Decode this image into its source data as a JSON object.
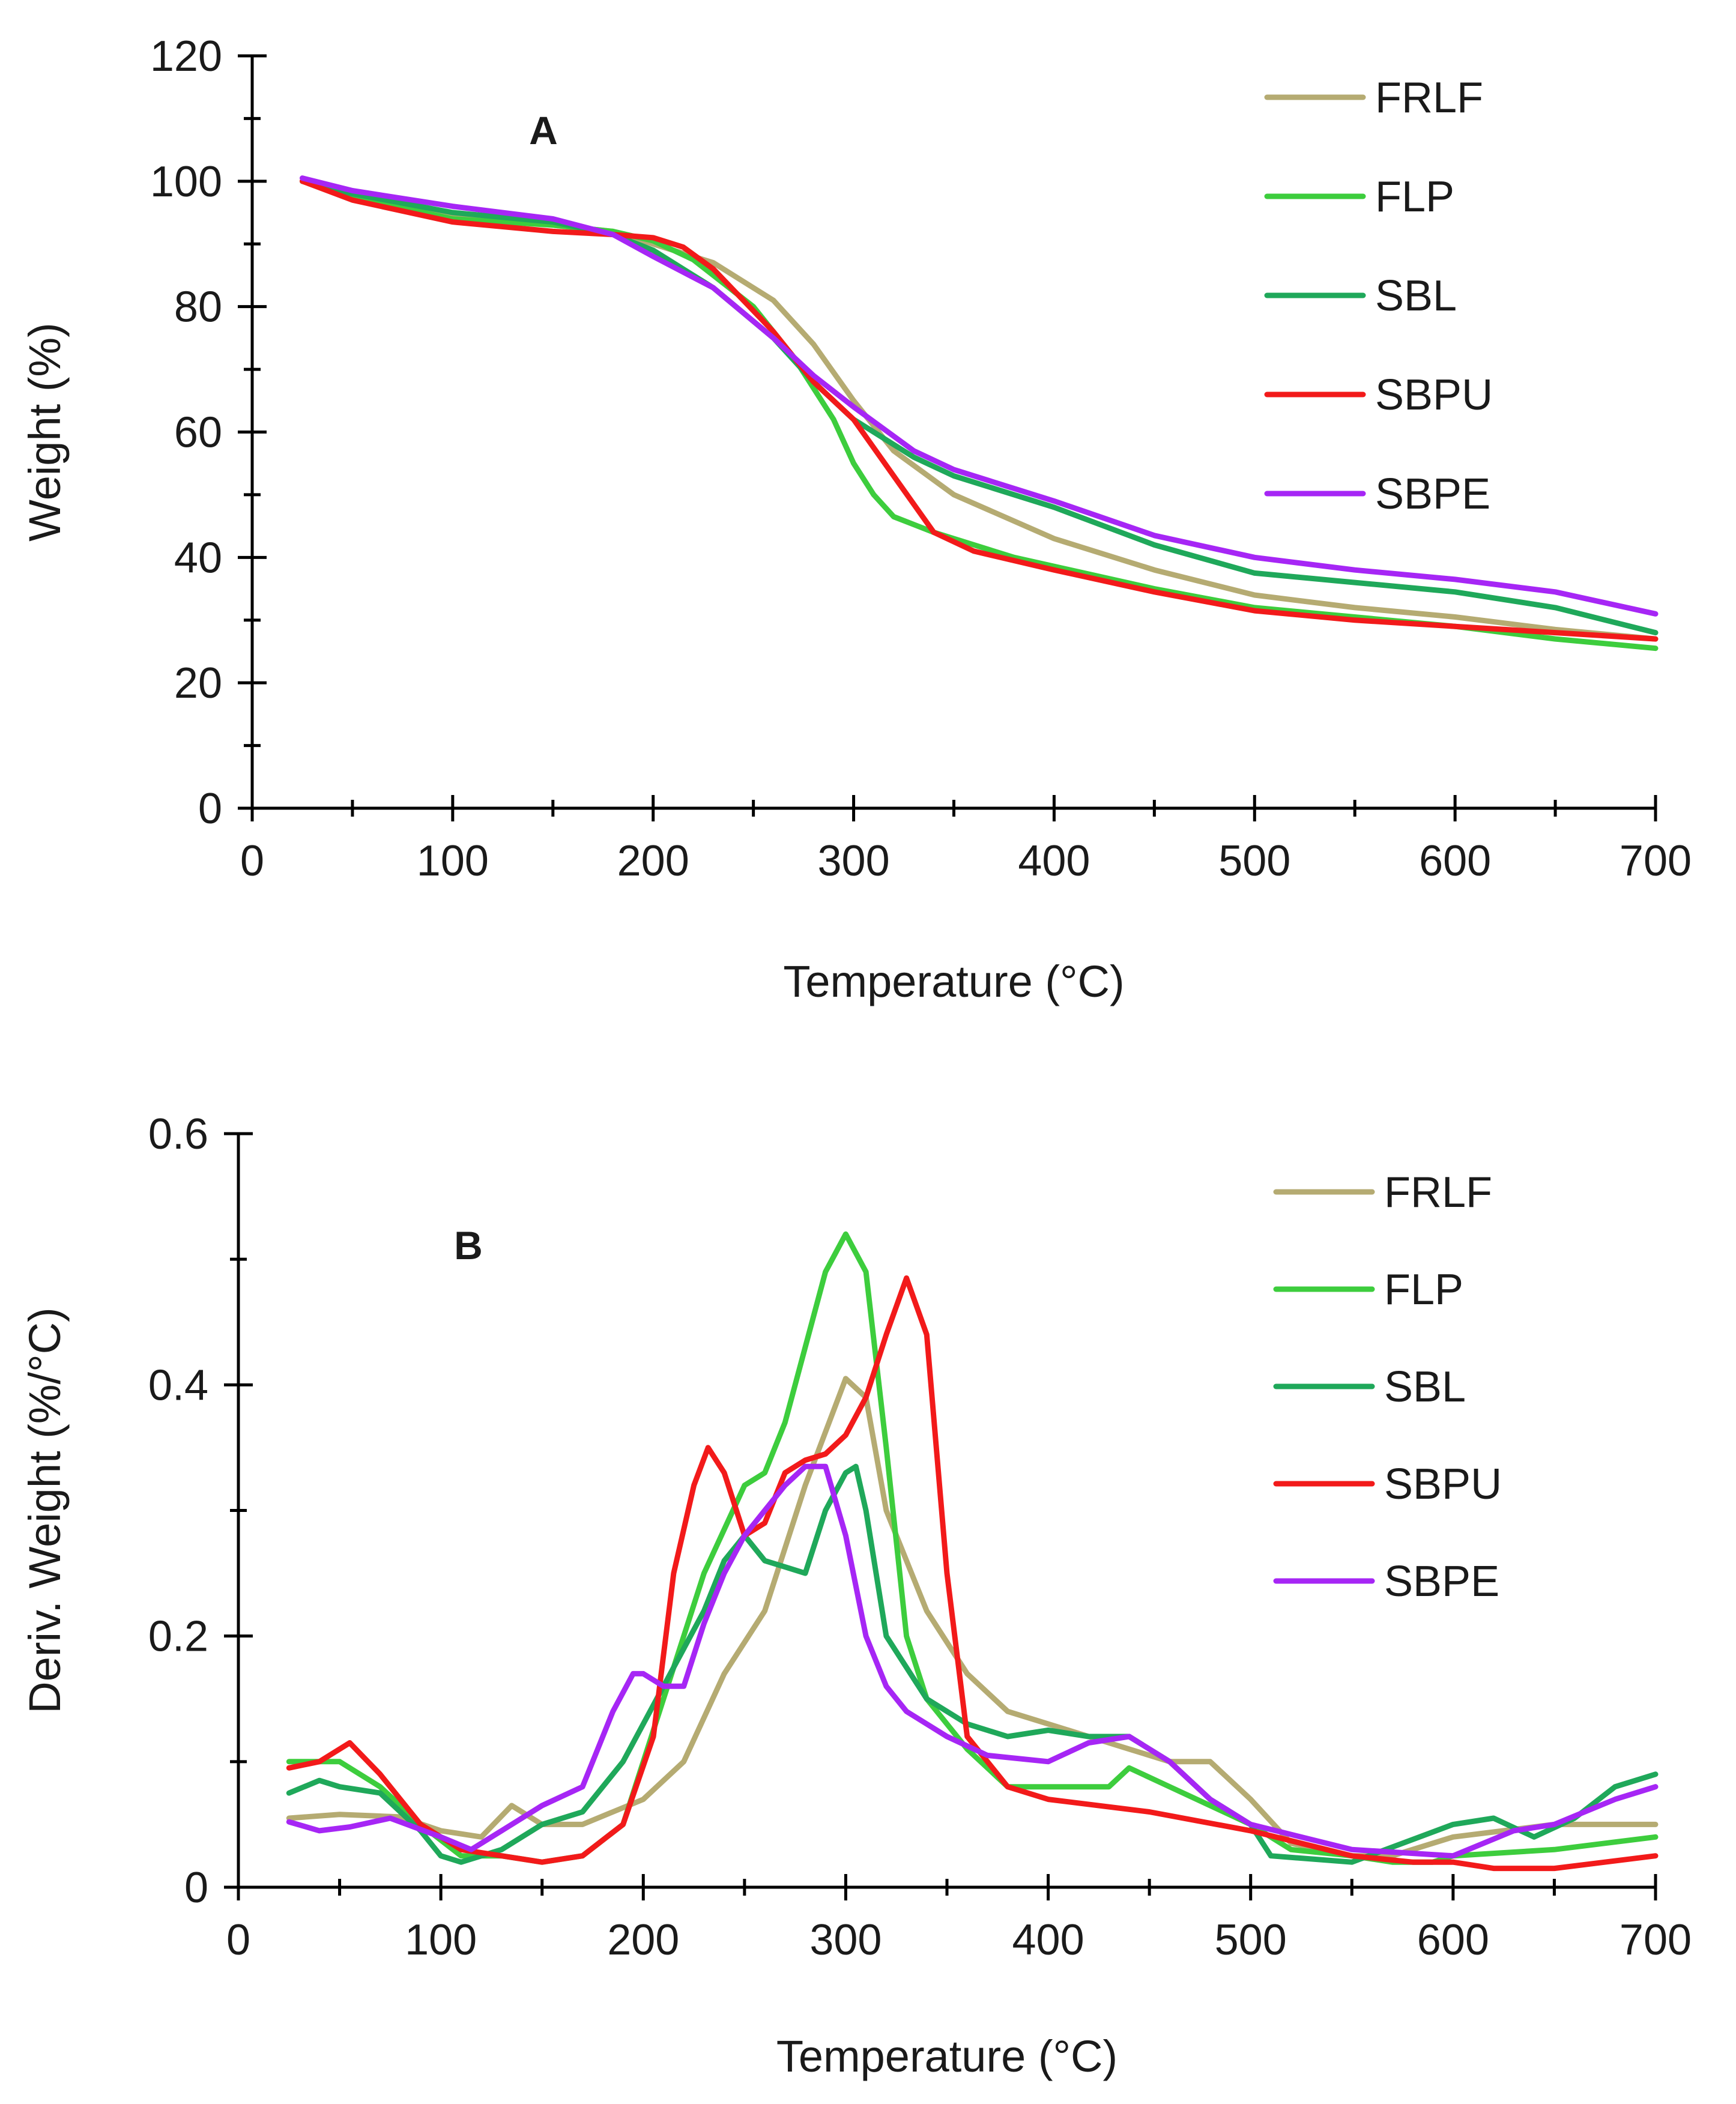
{
  "colors": {
    "FRLF": "#b5ab72",
    "FLP": "#3dcd3d",
    "SBL": "#1fa85a",
    "SBPU": "#f21a1a",
    "SBPE": "#a626f5"
  },
  "chart_data": [
    {
      "type": "line",
      "panel_label": "A",
      "title": "",
      "xlabel": "Temperature (°C)",
      "ylabel": "Weight (%)",
      "xlim": [
        0,
        700
      ],
      "ylim": [
        0,
        120
      ],
      "x_ticks": [
        0,
        100,
        200,
        300,
        400,
        500,
        600,
        700
      ],
      "y_ticks": [
        0,
        20,
        40,
        60,
        80,
        100,
        120
      ],
      "x_tick_labels": [
        "0",
        "100",
        "200",
        "300",
        "400",
        "500",
        "600",
        "700"
      ],
      "y_tick_labels": [
        "0",
        "20",
        "40",
        "60",
        "80",
        "100",
        "120"
      ],
      "x_minor_ticks": [
        50,
        150,
        250,
        350,
        450,
        550,
        650
      ],
      "y_minor_ticks": [
        10,
        30,
        50,
        70,
        90,
        110
      ],
      "legend_position": "top-right",
      "series": [
        {
          "name": "FRLF",
          "x": [
            25,
            50,
            100,
            150,
            180,
            200,
            230,
            260,
            280,
            300,
            320,
            350,
            400,
            450,
            500,
            550,
            600,
            650,
            700
          ],
          "y": [
            100,
            97.5,
            94.5,
            93,
            92,
            90,
            87,
            81,
            74,
            65,
            57,
            50,
            43,
            38,
            34,
            32,
            30.5,
            28.5,
            27
          ]
        },
        {
          "name": "FLP",
          "x": [
            25,
            50,
            100,
            150,
            180,
            200,
            220,
            250,
            270,
            290,
            300,
            310,
            320,
            340,
            380,
            450,
            500,
            600,
            650,
            700
          ],
          "y": [
            100,
            97.5,
            94,
            93,
            92,
            90.5,
            87.5,
            80,
            72,
            62,
            55,
            50,
            46.5,
            44,
            40,
            35,
            32,
            29,
            27,
            25.5
          ]
        },
        {
          "name": "SBL",
          "x": [
            25,
            50,
            100,
            150,
            180,
            200,
            230,
            260,
            280,
            300,
            330,
            350,
            400,
            450,
            500,
            550,
            600,
            650,
            700
          ],
          "y": [
            100,
            98,
            95,
            93.5,
            91.5,
            89,
            83,
            75,
            68,
            62,
            56,
            53,
            48,
            42,
            37.5,
            36,
            34.5,
            32,
            28
          ]
        },
        {
          "name": "SBPU",
          "x": [
            25,
            50,
            100,
            150,
            180,
            200,
            215,
            230,
            260,
            280,
            300,
            320,
            340,
            360,
            400,
            450,
            500,
            550,
            600,
            650,
            700
          ],
          "y": [
            100,
            97,
            93.5,
            92,
            91.5,
            91,
            89.5,
            86,
            76,
            68,
            62,
            53,
            44,
            41,
            38,
            34.5,
            31.5,
            30,
            29,
            28,
            27
          ]
        },
        {
          "name": "SBPE",
          "x": [
            25,
            50,
            100,
            150,
            180,
            200,
            230,
            260,
            280,
            300,
            330,
            350,
            400,
            450,
            500,
            550,
            600,
            650,
            700
          ],
          "y": [
            100.5,
            98.5,
            96,
            94,
            91.5,
            88,
            83,
            75,
            69,
            64,
            57,
            54,
            49,
            43.5,
            40,
            38,
            36.5,
            34.5,
            31
          ]
        }
      ]
    },
    {
      "type": "line",
      "panel_label": "B",
      "title": "",
      "xlabel": "Temperature (°C)",
      "ylabel": "Deriv. Weight (%/°C)",
      "xlim": [
        0,
        700
      ],
      "ylim": [
        0,
        0.6
      ],
      "x_ticks": [
        0,
        100,
        200,
        300,
        400,
        500,
        600,
        700
      ],
      "y_ticks": [
        0,
        0.2,
        0.4,
        0.6
      ],
      "x_tick_labels": [
        "0",
        "100",
        "200",
        "300",
        "400",
        "500",
        "600",
        "700"
      ],
      "y_tick_labels": [
        "0",
        "0.2",
        "0.4",
        "0.6"
      ],
      "x_minor_ticks": [
        50,
        150,
        250,
        350,
        450,
        550,
        650
      ],
      "y_minor_ticks": [
        0.1,
        0.3,
        0.5
      ],
      "legend_position": "top-right",
      "series": [
        {
          "name": "FRLF",
          "x": [
            25,
            50,
            80,
            100,
            120,
            135,
            150,
            170,
            200,
            220,
            240,
            260,
            280,
            300,
            310,
            320,
            340,
            360,
            380,
            400,
            420,
            440,
            460,
            480,
            500,
            520,
            550,
            570,
            600,
            650,
            700
          ],
          "y": [
            0.055,
            0.058,
            0.056,
            0.045,
            0.04,
            0.065,
            0.05,
            0.05,
            0.07,
            0.1,
            0.17,
            0.22,
            0.32,
            0.405,
            0.39,
            0.3,
            0.22,
            0.17,
            0.14,
            0.13,
            0.12,
            0.11,
            0.1,
            0.1,
            0.07,
            0.035,
            0.025,
            0.025,
            0.04,
            0.05,
            0.05
          ]
        },
        {
          "name": "FLP",
          "x": [
            25,
            50,
            70,
            90,
            110,
            130,
            150,
            170,
            190,
            210,
            230,
            250,
            260,
            270,
            280,
            290,
            300,
            310,
            320,
            330,
            340,
            360,
            380,
            400,
            430,
            440,
            460,
            480,
            500,
            520,
            550,
            570,
            590,
            600,
            650,
            700
          ],
          "y": [
            0.1,
            0.1,
            0.08,
            0.05,
            0.025,
            0.025,
            0.02,
            0.025,
            0.05,
            0.15,
            0.25,
            0.32,
            0.33,
            0.37,
            0.43,
            0.49,
            0.52,
            0.49,
            0.35,
            0.2,
            0.15,
            0.11,
            0.08,
            0.08,
            0.08,
            0.095,
            0.08,
            0.065,
            0.05,
            0.03,
            0.025,
            0.02,
            0.02,
            0.025,
            0.03,
            0.04
          ]
        },
        {
          "name": "SBL",
          "x": [
            25,
            40,
            50,
            70,
            90,
            100,
            110,
            130,
            150,
            170,
            190,
            210,
            230,
            240,
            250,
            260,
            270,
            280,
            290,
            300,
            305,
            310,
            320,
            340,
            360,
            380,
            400,
            420,
            440,
            460,
            480,
            500,
            510,
            550,
            600,
            620,
            640,
            660,
            680,
            700
          ],
          "y": [
            0.075,
            0.085,
            0.08,
            0.075,
            0.045,
            0.025,
            0.02,
            0.03,
            0.05,
            0.06,
            0.1,
            0.16,
            0.22,
            0.26,
            0.28,
            0.26,
            0.255,
            0.25,
            0.3,
            0.33,
            0.335,
            0.3,
            0.2,
            0.15,
            0.13,
            0.12,
            0.125,
            0.12,
            0.12,
            0.1,
            0.07,
            0.05,
            0.025,
            0.02,
            0.05,
            0.055,
            0.04,
            0.055,
            0.08,
            0.09
          ]
        },
        {
          "name": "SBPU",
          "x": [
            25,
            40,
            55,
            70,
            90,
            110,
            130,
            150,
            170,
            190,
            205,
            215,
            225,
            232,
            240,
            250,
            260,
            270,
            280,
            290,
            300,
            310,
            320,
            330,
            340,
            350,
            360,
            380,
            400,
            450,
            500,
            550,
            580,
            600,
            620,
            650,
            700
          ],
          "y": [
            0.095,
            0.1,
            0.115,
            0.09,
            0.05,
            0.03,
            0.025,
            0.02,
            0.025,
            0.05,
            0.12,
            0.25,
            0.32,
            0.35,
            0.33,
            0.28,
            0.29,
            0.33,
            0.34,
            0.345,
            0.36,
            0.39,
            0.44,
            0.485,
            0.44,
            0.25,
            0.12,
            0.08,
            0.07,
            0.06,
            0.045,
            0.025,
            0.02,
            0.02,
            0.015,
            0.015,
            0.025
          ]
        },
        {
          "name": "SBPE",
          "x": [
            25,
            40,
            55,
            75,
            100,
            115,
            130,
            150,
            170,
            185,
            195,
            200,
            210,
            220,
            230,
            240,
            250,
            260,
            270,
            280,
            290,
            300,
            310,
            320,
            330,
            350,
            370,
            400,
            420,
            440,
            460,
            480,
            500,
            550,
            600,
            630,
            650,
            680,
            700
          ],
          "y": [
            0.052,
            0.045,
            0.048,
            0.055,
            0.04,
            0.03,
            0.045,
            0.065,
            0.08,
            0.14,
            0.17,
            0.17,
            0.16,
            0.16,
            0.21,
            0.25,
            0.28,
            0.3,
            0.32,
            0.335,
            0.335,
            0.28,
            0.2,
            0.16,
            0.14,
            0.12,
            0.105,
            0.1,
            0.115,
            0.12,
            0.1,
            0.07,
            0.05,
            0.03,
            0.025,
            0.045,
            0.05,
            0.07,
            0.08
          ]
        }
      ]
    }
  ]
}
